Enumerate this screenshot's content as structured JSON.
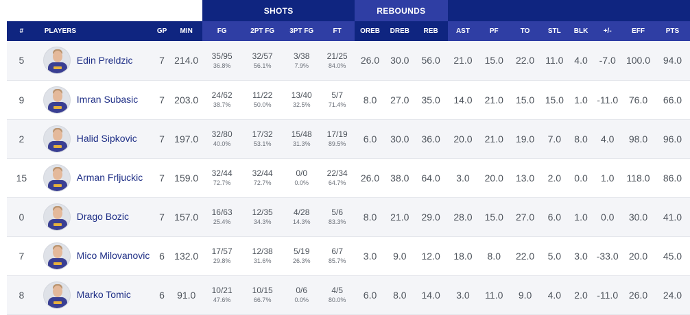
{
  "groups": {
    "shots": "SHOTS",
    "rebounds": "REBOUNDS"
  },
  "headers": {
    "num": "#",
    "players": "PLAYERS",
    "gp": "GP",
    "min": "MIN",
    "fg": "FG",
    "fg2": "2PT FG",
    "fg3": "3PT FG",
    "ft": "FT",
    "oreb": "OREB",
    "dreb": "DREB",
    "reb": "REB",
    "ast": "AST",
    "pf": "PF",
    "to": "TO",
    "stl": "STL",
    "blk": "BLK",
    "pm": "+/-",
    "eff": "EFF",
    "pts": "PTS"
  },
  "rows": [
    {
      "num": "5",
      "name": "Edin Preldzic",
      "gp": "7",
      "min": "214.0",
      "fg": "35/95",
      "fg_pct": "36.8%",
      "fg2": "32/57",
      "fg2_pct": "56.1%",
      "fg3": "3/38",
      "fg3_pct": "7.9%",
      "ft": "21/25",
      "ft_pct": "84.0%",
      "oreb": "26.0",
      "dreb": "30.0",
      "reb": "56.0",
      "ast": "21.0",
      "pf": "15.0",
      "to": "22.0",
      "stl": "11.0",
      "blk": "4.0",
      "pm": "-7.0",
      "eff": "100.0",
      "pts": "94.0"
    },
    {
      "num": "9",
      "name": "Imran Subasic",
      "gp": "7",
      "min": "203.0",
      "fg": "24/62",
      "fg_pct": "38.7%",
      "fg2": "11/22",
      "fg2_pct": "50.0%",
      "fg3": "13/40",
      "fg3_pct": "32.5%",
      "ft": "5/7",
      "ft_pct": "71.4%",
      "oreb": "8.0",
      "dreb": "27.0",
      "reb": "35.0",
      "ast": "14.0",
      "pf": "21.0",
      "to": "15.0",
      "stl": "15.0",
      "blk": "1.0",
      "pm": "-11.0",
      "eff": "76.0",
      "pts": "66.0"
    },
    {
      "num": "2",
      "name": "Halid Sipkovic",
      "gp": "7",
      "min": "197.0",
      "fg": "32/80",
      "fg_pct": "40.0%",
      "fg2": "17/32",
      "fg2_pct": "53.1%",
      "fg3": "15/48",
      "fg3_pct": "31.3%",
      "ft": "17/19",
      "ft_pct": "89.5%",
      "oreb": "6.0",
      "dreb": "30.0",
      "reb": "36.0",
      "ast": "20.0",
      "pf": "21.0",
      "to": "19.0",
      "stl": "7.0",
      "blk": "8.0",
      "pm": "4.0",
      "eff": "98.0",
      "pts": "96.0"
    },
    {
      "num": "15",
      "name": "Arman Frljuckic",
      "gp": "7",
      "min": "159.0",
      "fg": "32/44",
      "fg_pct": "72.7%",
      "fg2": "32/44",
      "fg2_pct": "72.7%",
      "fg3": "0/0",
      "fg3_pct": "0.0%",
      "ft": "22/34",
      "ft_pct": "64.7%",
      "oreb": "26.0",
      "dreb": "38.0",
      "reb": "64.0",
      "ast": "3.0",
      "pf": "20.0",
      "to": "13.0",
      "stl": "2.0",
      "blk": "0.0",
      "pm": "1.0",
      "eff": "118.0",
      "pts": "86.0"
    },
    {
      "num": "0",
      "name": "Drago Bozic",
      "gp": "7",
      "min": "157.0",
      "fg": "16/63",
      "fg_pct": "25.4%",
      "fg2": "12/35",
      "fg2_pct": "34.3%",
      "fg3": "4/28",
      "fg3_pct": "14.3%",
      "ft": "5/6",
      "ft_pct": "83.3%",
      "oreb": "8.0",
      "dreb": "21.0",
      "reb": "29.0",
      "ast": "28.0",
      "pf": "15.0",
      "to": "27.0",
      "stl": "6.0",
      "blk": "1.0",
      "pm": "0.0",
      "eff": "30.0",
      "pts": "41.0"
    },
    {
      "num": "7",
      "name": "Mico Milovanovic",
      "gp": "6",
      "min": "132.0",
      "fg": "17/57",
      "fg_pct": "29.8%",
      "fg2": "12/38",
      "fg2_pct": "31.6%",
      "fg3": "5/19",
      "fg3_pct": "26.3%",
      "ft": "6/7",
      "ft_pct": "85.7%",
      "oreb": "3.0",
      "dreb": "9.0",
      "reb": "12.0",
      "ast": "18.0",
      "pf": "8.0",
      "to": "22.0",
      "stl": "5.0",
      "blk": "3.0",
      "pm": "-33.0",
      "eff": "20.0",
      "pts": "45.0"
    },
    {
      "num": "8",
      "name": "Marko Tomic",
      "gp": "6",
      "min": "91.0",
      "fg": "10/21",
      "fg_pct": "47.6%",
      "fg2": "10/15",
      "fg2_pct": "66.7%",
      "fg3": "0/6",
      "fg3_pct": "0.0%",
      "ft": "4/5",
      "ft_pct": "80.0%",
      "oreb": "6.0",
      "dreb": "8.0",
      "reb": "14.0",
      "ast": "3.0",
      "pf": "11.0",
      "to": "9.0",
      "stl": "4.0",
      "blk": "2.0",
      "pm": "-11.0",
      "eff": "26.0",
      "pts": "24.0"
    }
  ]
}
